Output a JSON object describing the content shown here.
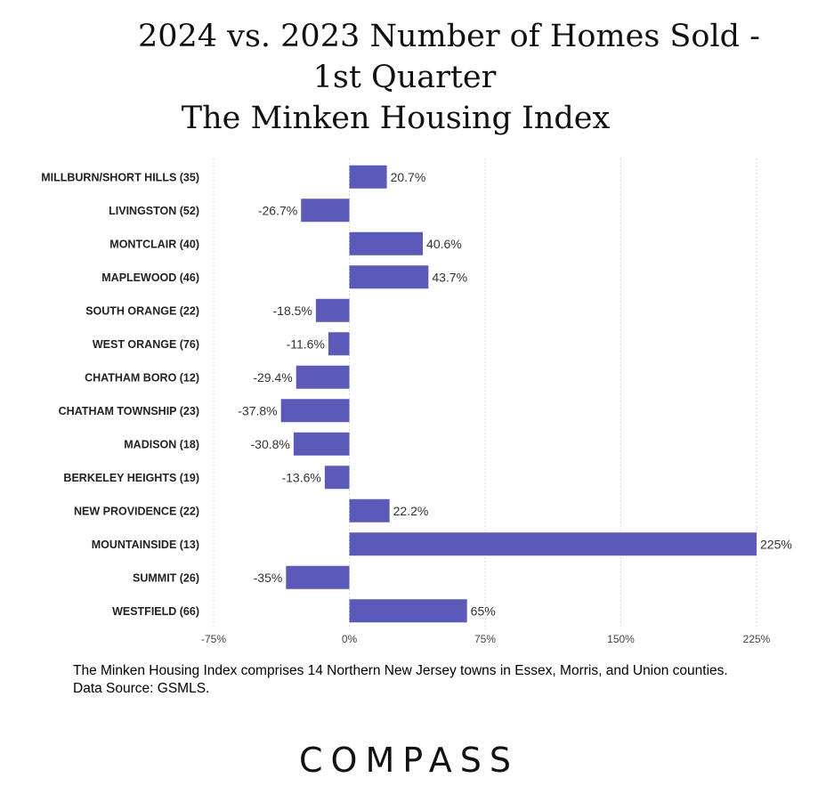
{
  "chart_data": {
    "type": "bar",
    "orientation": "horizontal",
    "title_lines": [
      "2024 vs. 2023 Number of Homes Sold -",
      "1st Quarter",
      "The Minken Housing Index"
    ],
    "categories": [
      "MILLBURN/SHORT HILLS  (35)",
      "LIVINGSTON (52)",
      "MONTCLAIR (40)",
      "MAPLEWOOD (46)",
      "SOUTH ORANGE (22)",
      "WEST ORANGE (76)",
      "CHATHAM BORO (12)",
      "CHATHAM TOWNSHIP (23)",
      "MADISON (18)",
      "BERKELEY HEIGHTS (19)",
      "NEW PROVIDENCE (22)",
      "MOUNTAINSIDE (13)",
      "SUMMIT (26)",
      "WESTFIELD (66)"
    ],
    "values": [
      20.7,
      -26.7,
      40.6,
      43.7,
      -18.5,
      -11.6,
      -29.4,
      -37.8,
      -30.8,
      -13.6,
      22.2,
      225,
      -35,
      65
    ],
    "value_labels": [
      "20.7%",
      "-26.7%",
      "40.6%",
      "43.7%",
      "-18.5%",
      "-11.6%",
      "-29.4%",
      "-37.8%",
      "-30.8%",
      "-13.6%",
      "22.2%",
      "225%",
      "-35%",
      "65%"
    ],
    "x_ticks": [
      -75,
      0,
      75,
      150,
      225
    ],
    "x_tick_labels": [
      "-75%",
      "0%",
      "75%",
      "150%",
      "225%"
    ],
    "xlim": [
      -75,
      225
    ],
    "grid": "vertical",
    "bar_color": "#5c5ab8"
  },
  "footnote": {
    "line1": "The Minken Housing Index comprises 14 Northern New Jersey towns in Essex, Morris, and Union counties.",
    "line2": "Data Source: GSMLS."
  },
  "logo": {
    "text": "COMPASS"
  }
}
